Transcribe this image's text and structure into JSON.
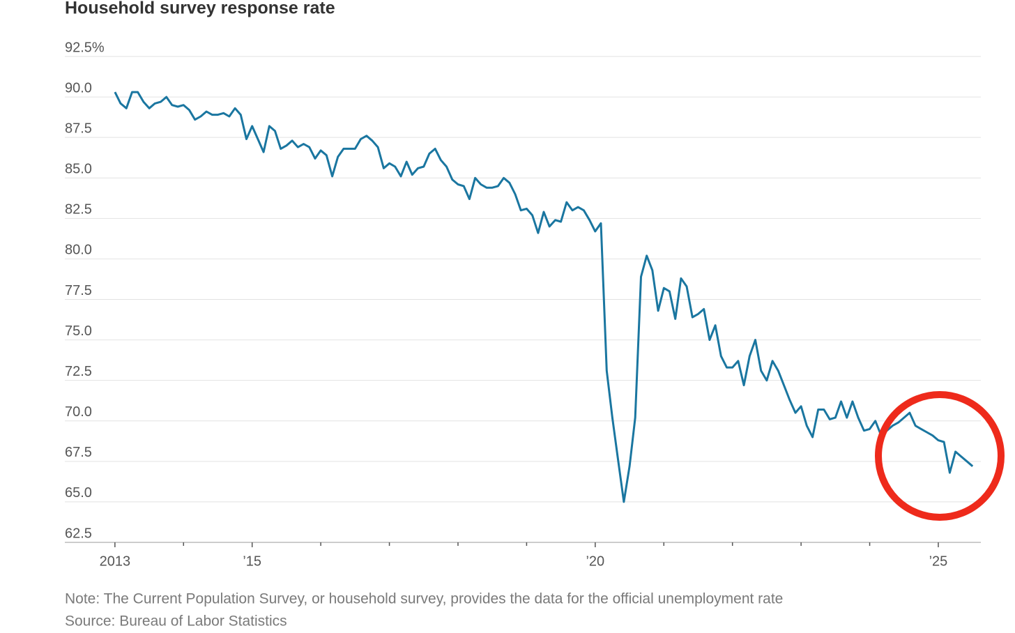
{
  "chart_data": {
    "type": "line",
    "title": "Household survey response rate",
    "note": "Note: The Current Population Survey, or household survey, provides the data for the official unemployment rate",
    "source": "Source: Bureau of Labor Statistics",
    "color": "#1a76a0",
    "grid": true,
    "xlim": [
      2012.27,
      2025.62
    ],
    "xticks": [
      {
        "value": 2013,
        "label": "2013"
      },
      {
        "value": 2015,
        "label": "’15"
      },
      {
        "value": 2020,
        "label": "’20"
      },
      {
        "value": 2025,
        "label": "’25"
      }
    ],
    "xminorticks": [
      2014,
      2016,
      2017,
      2018,
      2019,
      2021,
      2022,
      2023,
      2024
    ],
    "ylim": [
      62.5,
      92.5
    ],
    "yticks": [
      {
        "value": 92.5,
        "label": "92.5%"
      },
      {
        "value": 90,
        "label": "90.0"
      },
      87.5,
      {
        "value": 85,
        "label": "85.0"
      },
      82.5,
      {
        "value": 80,
        "label": "80.0"
      },
      77.5,
      {
        "value": 75,
        "label": "75.0"
      },
      72.5,
      {
        "value": 70,
        "label": "70.0"
      },
      67.5,
      {
        "value": 65,
        "label": "65.0"
      },
      62.5
    ],
    "x": [
      2013,
      2013.083,
      2013.167,
      2013.25,
      2013.333,
      2013.417,
      2013.5,
      2013.583,
      2013.667,
      2013.75,
      2013.833,
      2013.917,
      2014,
      2014.083,
      2014.167,
      2014.25,
      2014.333,
      2014.417,
      2014.5,
      2014.583,
      2014.667,
      2014.75,
      2014.833,
      2014.917,
      2015,
      2015.083,
      2015.167,
      2015.25,
      2015.333,
      2015.417,
      2015.5,
      2015.583,
      2015.667,
      2015.75,
      2015.833,
      2015.917,
      2016,
      2016.083,
      2016.167,
      2016.25,
      2016.333,
      2016.417,
      2016.5,
      2016.583,
      2016.667,
      2016.75,
      2016.833,
      2016.917,
      2017,
      2017.083,
      2017.167,
      2017.25,
      2017.333,
      2017.417,
      2017.5,
      2017.583,
      2017.667,
      2017.75,
      2017.833,
      2017.917,
      2018,
      2018.083,
      2018.167,
      2018.25,
      2018.333,
      2018.417,
      2018.5,
      2018.583,
      2018.667,
      2018.75,
      2018.833,
      2018.917,
      2019,
      2019.083,
      2019.167,
      2019.25,
      2019.333,
      2019.417,
      2019.5,
      2019.583,
      2019.667,
      2019.75,
      2019.833,
      2019.917,
      2020,
      2020.083,
      2020.167,
      2020.25,
      2020.333,
      2020.417,
      2020.5,
      2020.583,
      2020.667,
      2020.75,
      2020.833,
      2020.917,
      2021,
      2021.083,
      2021.167,
      2021.25,
      2021.333,
      2021.417,
      2021.5,
      2021.583,
      2021.667,
      2021.75,
      2021.833,
      2021.917,
      2022,
      2022.083,
      2022.167,
      2022.25,
      2022.333,
      2022.417,
      2022.5,
      2022.583,
      2022.667,
      2022.75,
      2022.833,
      2022.917,
      2023,
      2023.083,
      2023.167,
      2023.25,
      2023.333,
      2023.417,
      2023.5,
      2023.583,
      2023.667,
      2023.75,
      2023.833,
      2023.917,
      2024,
      2024.083,
      2024.167,
      2024.25,
      2024.333,
      2024.417,
      2024.5,
      2024.583,
      2024.667,
      2024.75,
      2024.833,
      2024.917,
      2025,
      2025.083,
      2025.167,
      2025.25,
      2025.333,
      2025.417,
      2025.5
    ],
    "values": [
      90.3,
      89.6,
      89.3,
      90.3,
      90.3,
      89.7,
      89.3,
      89.6,
      89.7,
      90.0,
      89.5,
      89.4,
      89.5,
      89.2,
      88.6,
      88.8,
      89.1,
      88.9,
      88.9,
      89.0,
      88.8,
      89.3,
      88.9,
      87.4,
      88.2,
      87.4,
      86.6,
      88.2,
      87.9,
      86.8,
      87.0,
      87.3,
      86.9,
      87.1,
      86.9,
      86.2,
      86.7,
      86.4,
      85.1,
      86.3,
      86.8,
      86.8,
      86.8,
      87.4,
      87.6,
      87.3,
      86.9,
      85.6,
      85.9,
      85.7,
      85.1,
      86.0,
      85.2,
      85.6,
      85.7,
      86.5,
      86.8,
      86.1,
      85.7,
      84.9,
      84.6,
      84.5,
      83.7,
      85.0,
      84.6,
      84.4,
      84.4,
      84.5,
      85.0,
      84.7,
      84.0,
      83.0,
      83.1,
      82.7,
      81.6,
      82.9,
      82.0,
      82.4,
      82.3,
      83.5,
      83.0,
      83.2,
      83.0,
      82.4,
      81.7,
      82.2,
      73.1,
      70.2,
      67.6,
      65.0,
      67.2,
      70.2,
      78.9,
      80.2,
      79.3,
      76.8,
      78.2,
      78.0,
      76.3,
      78.8,
      78.3,
      76.4,
      76.6,
      76.9,
      75.0,
      75.9,
      74.0,
      73.3,
      73.3,
      73.7,
      72.2,
      74.0,
      75.0,
      73.1,
      72.5,
      73.7,
      73.1,
      72.2,
      71.3,
      70.5,
      70.9,
      69.7,
      69.0,
      70.7,
      70.7,
      70.1,
      70.2,
      71.2,
      70.2,
      71.2,
      70.2,
      69.4,
      69.5,
      70.0,
      69.1,
      69.4,
      69.7,
      69.9,
      70.2,
      70.5,
      69.7,
      69.5,
      69.3,
      69.1,
      68.8,
      68.7,
      66.8,
      68.1,
      67.8,
      67.5,
      67.2
    ]
  }
}
